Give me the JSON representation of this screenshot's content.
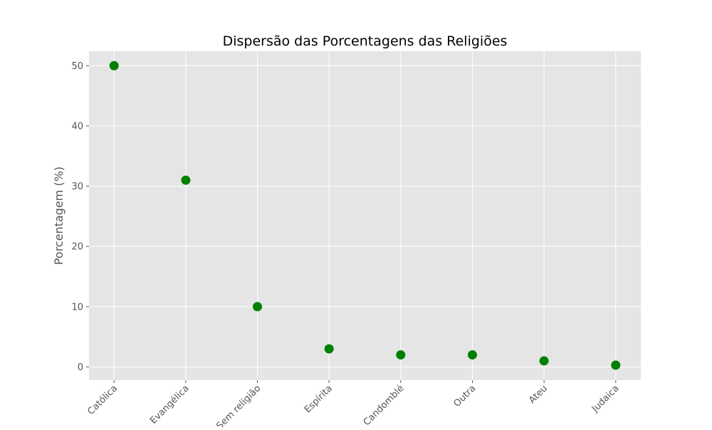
{
  "chart_data": {
    "type": "scatter",
    "title": "Dispersão das Porcentagens das Religiões",
    "xlabel": "",
    "ylabel": "Porcentagem (%)",
    "categories": [
      "Católica",
      "Evangélica",
      "Sem religião",
      "Espírita",
      "Candomblé",
      "Outra",
      "Ateu",
      "Judaica"
    ],
    "values": [
      50,
      31,
      10,
      3,
      2,
      2,
      1,
      0.3
    ],
    "ylim": [
      -2.2,
      52.4
    ],
    "yticks": [
      "0",
      "10",
      "20",
      "30",
      "40",
      "50"
    ],
    "grid": true,
    "legend": "none",
    "colors": {
      "marker": "#008000",
      "plot_background": "#e5e5e5",
      "grid": "#ffffff",
      "tick_text": "#555555",
      "label_text": "#555555",
      "title_text": "#000000"
    }
  }
}
